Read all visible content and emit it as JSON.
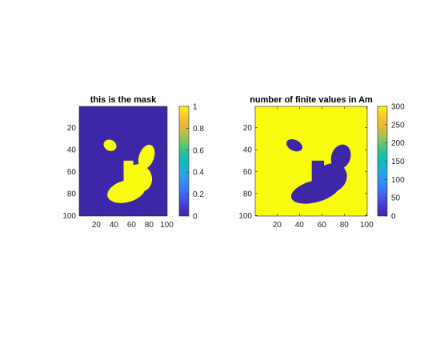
{
  "figure": {
    "background": "#ffffff"
  },
  "colors": {
    "low": "#3e26a8",
    "high": "#f9fb0e",
    "parula_stops": [
      "#3e26a8",
      "#4437c6",
      "#4659e9",
      "#3c78fc",
      "#2f95f0",
      "#23abd8",
      "#14bab7",
      "#2ac294",
      "#70c56b",
      "#b6bf4b",
      "#ebb739",
      "#fcc532",
      "#f9fb0e"
    ]
  },
  "chart_data": [
    {
      "type": "heatmap",
      "title": "this is the mask",
      "xlabel": "",
      "ylabel": "",
      "xlim": [
        0.5,
        100.5
      ],
      "ylim": [
        0.5,
        100.5
      ],
      "y_reversed": true,
      "xticks": [
        "20",
        "40",
        "60",
        "80",
        "100"
      ],
      "yticks": [
        "20",
        "40",
        "60",
        "80",
        "100"
      ],
      "values_description_inside": 1,
      "values_description_outside": 0,
      "shape_regions": [
        {
          "kind": "ellipse",
          "cx": 35.5,
          "cy": 36,
          "rx": 7.5,
          "ry": 5,
          "rotation": 25
        },
        {
          "kind": "ellipse",
          "cx": 77,
          "cy": 46.5,
          "rx": 8.5,
          "ry": 11.5,
          "rotation": 20
        },
        {
          "kind": "ellipse",
          "cx": 54,
          "cy": 78,
          "rx": 22,
          "ry": 10,
          "rotation": -15
        },
        {
          "kind": "ellipse",
          "cx": 68,
          "cy": 66,
          "rx": 15,
          "ry": 13,
          "rotation": -30
        },
        {
          "kind": "rect",
          "x0": 51,
          "x1": 62,
          "y0": 50,
          "y1": 72
        }
      ],
      "colorbar": {
        "min": 0,
        "max": 1,
        "ticks": [
          "0",
          "0.2",
          "0.4",
          "0.6",
          "0.8",
          "1"
        ]
      }
    },
    {
      "type": "heatmap",
      "title": "number of finite values in Am",
      "xlabel": "",
      "ylabel": "",
      "xlim": [
        0.5,
        100.5
      ],
      "ylim": [
        0.5,
        100.5
      ],
      "y_reversed": true,
      "xticks": [
        "20",
        "40",
        "60",
        "80",
        "100"
      ],
      "yticks": [
        "20",
        "40",
        "60",
        "80",
        "100"
      ],
      "values_description_inside": 0,
      "values_description_outside": 300,
      "shape_regions": "same as mask",
      "colorbar": {
        "min": 0,
        "max": 300,
        "ticks": [
          "0",
          "50",
          "100",
          "150",
          "200",
          "250",
          "300"
        ]
      }
    }
  ]
}
